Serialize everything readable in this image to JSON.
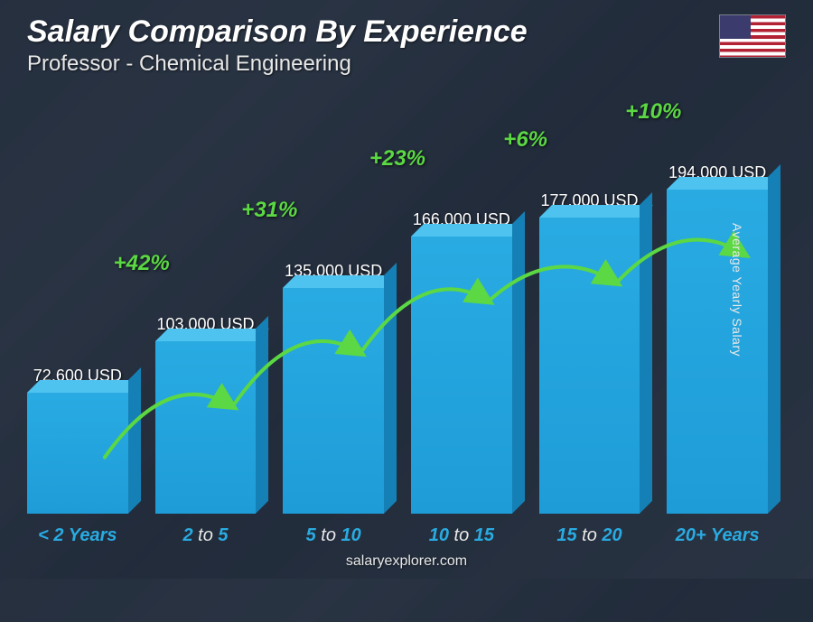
{
  "header": {
    "title": "Salary Comparison By Experience",
    "subtitle": "Professor - Chemical Engineering",
    "flag_country": "US"
  },
  "chart": {
    "type": "bar",
    "y_axis_label": "Average Yearly Salary",
    "currency": "USD",
    "max_value": 194000,
    "bar_color_front": "#29abe2",
    "bar_color_top": "#4fc3f0",
    "bar_color_side": "#1580b5",
    "pct_color": "#5bd843",
    "value_fontsize": 18,
    "category_fontsize": 20,
    "pct_fontsize": 24,
    "background_overlay": "rgba(30,40,55,0.75)",
    "bars": [
      {
        "category_hl": "< 2",
        "category_suffix": "Years",
        "value": 72600,
        "value_label": "72,600 USD",
        "pct_from_prev": null
      },
      {
        "category_hl": "2",
        "category_mid": " to ",
        "category_hl2": "5",
        "value": 103000,
        "value_label": "103,000 USD",
        "pct_from_prev": "+42%"
      },
      {
        "category_hl": "5",
        "category_mid": " to ",
        "category_hl2": "10",
        "value": 135000,
        "value_label": "135,000 USD",
        "pct_from_prev": "+31%"
      },
      {
        "category_hl": "10",
        "category_mid": " to ",
        "category_hl2": "15",
        "value": 166000,
        "value_label": "166,000 USD",
        "pct_from_prev": "+23%"
      },
      {
        "category_hl": "15",
        "category_mid": " to ",
        "category_hl2": "20",
        "value": 177000,
        "value_label": "177,000 USD",
        "pct_from_prev": "+6%"
      },
      {
        "category_hl": "20+",
        "category_suffix": "Years",
        "value": 194000,
        "value_label": "194,000 USD",
        "pct_from_prev": "+10%"
      }
    ]
  },
  "footer": {
    "source": "salaryexplorer.com"
  }
}
